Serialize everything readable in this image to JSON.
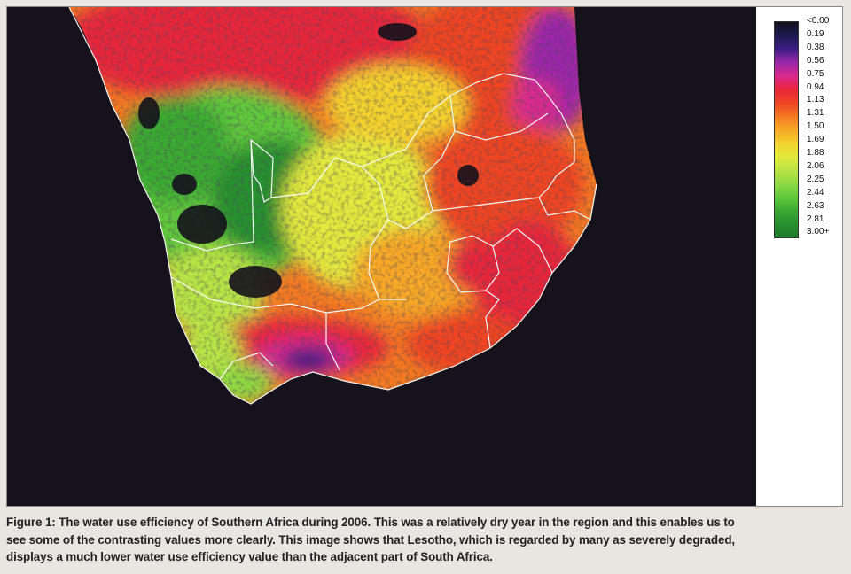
{
  "legend": {
    "labels": [
      "<0.00",
      "0.19",
      "0.38",
      "0.56",
      "0.75",
      "0.94",
      "1.13",
      "1.31",
      "1.50",
      "1.69",
      "1.88",
      "2.06",
      "2.25",
      "2.44",
      "2.63",
      "2.81",
      "3.00+"
    ],
    "colors": [
      "#14101e",
      "#1c1a50",
      "#3d1d85",
      "#9b27a9",
      "#d9298f",
      "#e8263a",
      "#ef4424",
      "#f47a22",
      "#f7a826",
      "#f4d22e",
      "#e2e93c",
      "#b9e445",
      "#8fd943",
      "#5fc83b",
      "#3aaa32",
      "#27902f",
      "#1d7a2a"
    ]
  },
  "map": {
    "background": "#15121c",
    "border_color": "#ffffff",
    "regions": "Southern Africa water use efficiency 2006"
  },
  "caption": {
    "line1": "Figure 1: The water use efficiency of Southern Africa during 2006. This was a relatively dry year in the region and this enables us to",
    "line2": "see some of the contrasting values more clearly. This image shows that Lesotho, which is regarded by many as severely degraded,",
    "line3": "displays a much lower water use efficiency value than the adjacent part of South Africa."
  }
}
